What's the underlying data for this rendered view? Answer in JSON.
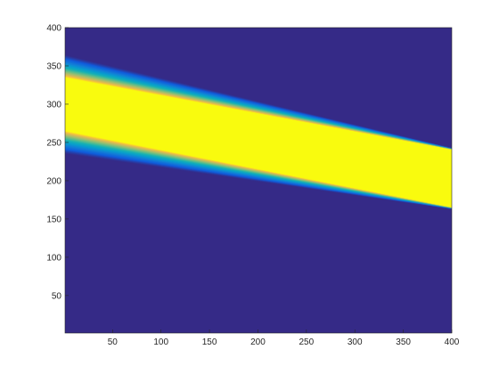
{
  "chart_data": {
    "type": "heatmap",
    "title": "",
    "xlabel": "",
    "ylabel": "",
    "xlim": [
      1,
      400
    ],
    "ylim": [
      1,
      400
    ],
    "x_ticks": [
      "50",
      "100",
      "150",
      "200",
      "250",
      "300",
      "350",
      "400"
    ],
    "y_ticks": [
      "50",
      "100",
      "150",
      "200",
      "250",
      "300",
      "350",
      "400"
    ],
    "grid": false,
    "colormap": "parula",
    "colors": {
      "background": "#352a87",
      "axes_box": "#262626",
      "peak": "#f9fb0e"
    },
    "band": {
      "x": [
        1,
        400
      ],
      "center_y": [
        300,
        203
      ],
      "core_halfwidth": [
        35,
        38
      ],
      "edge_halfwidth": [
        65,
        40
      ],
      "description_values_in_data_units": true
    }
  }
}
